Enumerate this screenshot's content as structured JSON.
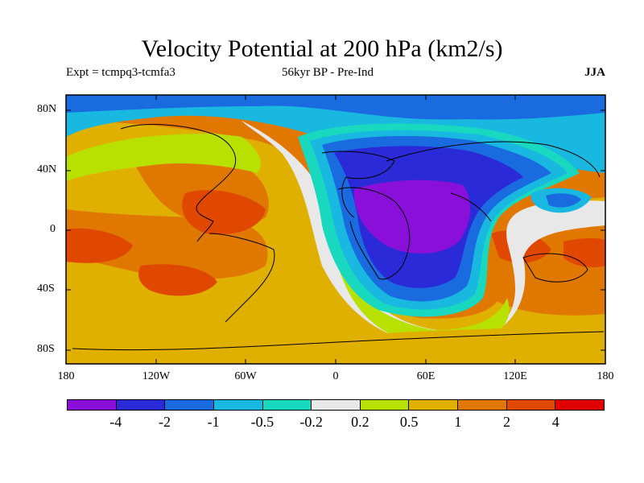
{
  "title": "Velocity Potential at 200 hPa (km2/s)",
  "subtitle_left": "Expt = tcmpq3-tcmfa3",
  "subtitle_mid": "56kyr BP - Pre-Ind",
  "season": "JJA",
  "lat_labels": [
    "80N",
    "40N",
    "0",
    "40S",
    "80S"
  ],
  "lon_labels": [
    "180",
    "120W",
    "60W",
    "0",
    "60E",
    "120E",
    "180"
  ],
  "colorbar": {
    "colors": [
      "#8a0fd8",
      "#2a2ad8",
      "#1a6be0",
      "#18b8e0",
      "#18d8c0",
      "#e8e8e8",
      "#b8e000",
      "#e0b000",
      "#e07800",
      "#e04800",
      "#e00000"
    ],
    "labels": [
      "-4",
      "-2",
      "-1",
      "-0.5",
      "-0.2",
      "0.2",
      "0.5",
      "1",
      "2",
      "4"
    ]
  }
}
